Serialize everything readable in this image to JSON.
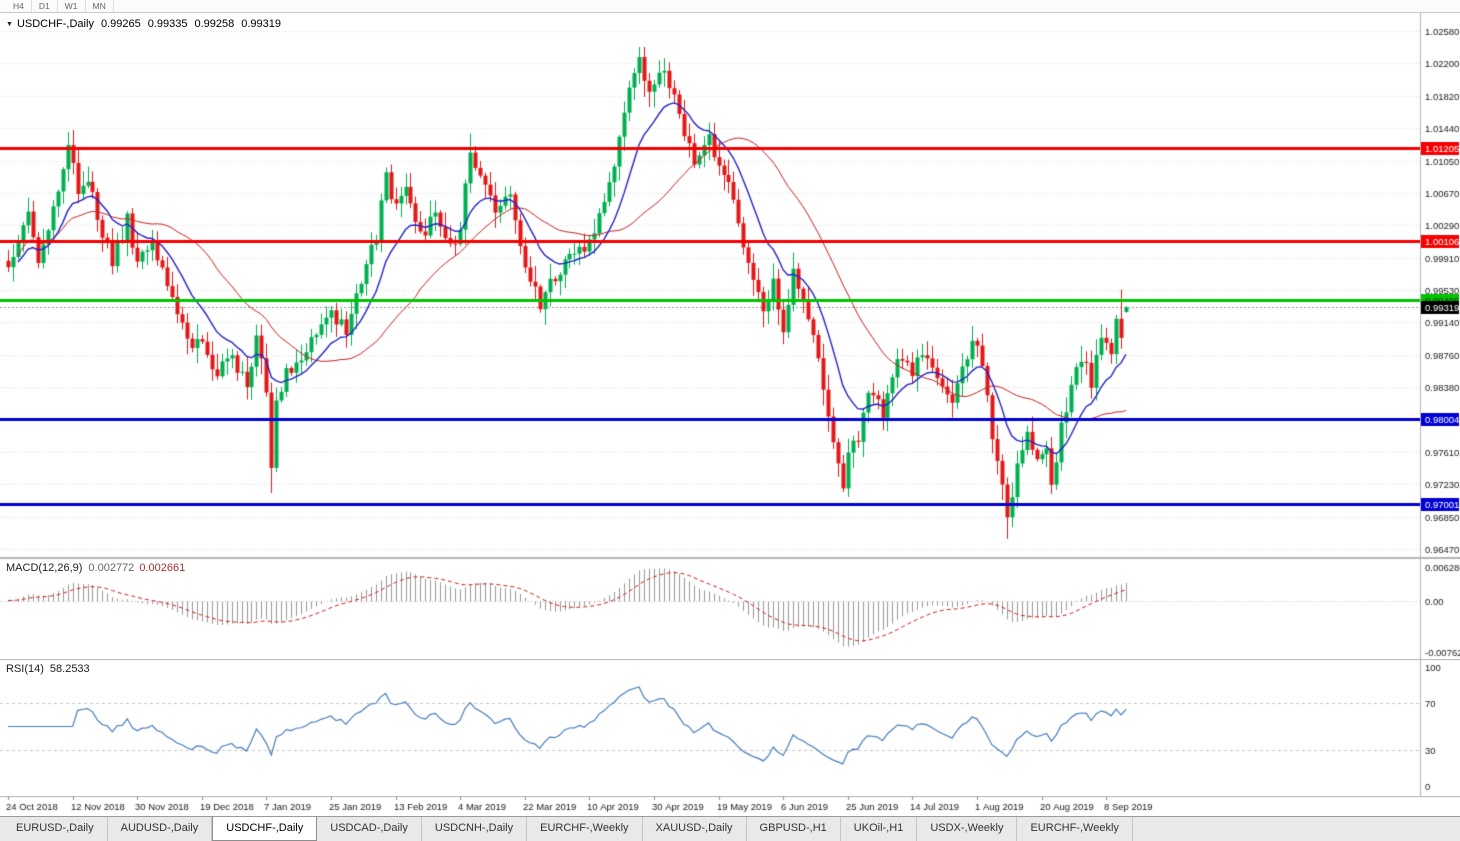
{
  "toolbar": {
    "timeframes": [
      "H4",
      "D1",
      "W1",
      "MN"
    ]
  },
  "icons": {
    "chart_dropdown": "▼"
  },
  "chart": {
    "title": "USDCHF-,Daily",
    "quote": {
      "open": "0.99265",
      "high": "0.99335",
      "low": "0.99258",
      "close": "0.99319"
    }
  },
  "chart_data": {
    "type": "candlestick",
    "symbol": "USDCHF",
    "timeframe": "Daily",
    "bars": 226,
    "price_axis": {
      "top": 1.0258,
      "bottom": 0.9647,
      "labels": [
        "1.02580",
        "1.02200",
        "1.01820",
        "1.01440",
        "1.01050",
        "1.00670",
        "1.00290",
        "0.99910",
        "0.99530",
        "0.99140",
        "0.98760",
        "0.98380",
        "0.97990",
        "0.97610",
        "0.97230",
        "0.96850",
        "0.96470"
      ]
    },
    "date_axis": {
      "labels": [
        "24 Oct 2018",
        "12 Nov 2018",
        "30 Nov 2018",
        "19 Dec 2018",
        "7 Jan 2019",
        "25 Jan 2019",
        "13 Feb 2019",
        "4 Mar 2019",
        "22 Mar 2019",
        "10 Apr 2019",
        "30 Apr 2019",
        "19 May 2019",
        "6 Jun 2019",
        "25 Jun 2019",
        "14 Jul 2019",
        "1 Aug 2019",
        "20 Aug 2019",
        "8 Sep 2019"
      ],
      "days": [
        0,
        13,
        26,
        39,
        52,
        65,
        78,
        91,
        104,
        117,
        130,
        143,
        156,
        169,
        182,
        195,
        208,
        221
      ]
    },
    "levels": [
      {
        "label": "1.01205",
        "price": 1.01205,
        "color": "#f40000",
        "text_color": "#ffffff",
        "width": 3
      },
      {
        "label": "1.00106",
        "price": 1.00106,
        "color": "#f40000",
        "text_color": "#ffffff",
        "width": 3
      },
      {
        "label": "0.99406",
        "price": 0.99406,
        "color": "#00c400",
        "text_color": "#00340a",
        "width": 3
      },
      {
        "label": "0.98004",
        "price": 0.98004,
        "color": "#0000d6",
        "text_color": "#ffffff",
        "width": 3
      },
      {
        "label": "0.97001",
        "price": 0.97001,
        "color": "#0000d6",
        "text_color": "#ffffff",
        "width": 3
      }
    ],
    "current_price": {
      "value": 0.99319,
      "label": "0.99319",
      "box_color": "#000000",
      "text_color": "#ffffff"
    },
    "last_candle": {
      "open": 0.99265,
      "high": 0.99335,
      "low": 0.99258,
      "close": 0.99319
    },
    "price_path_waypoints": [
      [
        0,
        0.9975
      ],
      [
        2,
        1.0015
      ],
      [
        4,
        1.0045
      ],
      [
        6,
        0.9985
      ],
      [
        9,
        1.0045
      ],
      [
        11,
        1.0095
      ],
      [
        12,
        1.0125
      ],
      [
        14,
        1.0065
      ],
      [
        16,
        1.0085
      ],
      [
        18,
        1.0035
      ],
      [
        21,
        0.9985
      ],
      [
        24,
        1.0035
      ],
      [
        26,
        0.9985
      ],
      [
        29,
        1.0005
      ],
      [
        33,
        0.9945
      ],
      [
        36,
        0.9895
      ],
      [
        39,
        0.9885
      ],
      [
        42,
        0.9855
      ],
      [
        45,
        0.9875
      ],
      [
        48,
        0.9835
      ],
      [
        50,
        0.9895
      ],
      [
        52,
        0.9835
      ],
      [
        53,
        0.9745
      ],
      [
        54,
        0.9815
      ],
      [
        56,
        0.9855
      ],
      [
        59,
        0.9865
      ],
      [
        62,
        0.9905
      ],
      [
        65,
        0.9925
      ],
      [
        68,
        0.9905
      ],
      [
        71,
        0.9965
      ],
      [
        74,
        1.0015
      ],
      [
        76,
        1.0085
      ],
      [
        78,
        1.005
      ],
      [
        80,
        1.007
      ],
      [
        83,
        1.0015
      ],
      [
        86,
        1.0045
      ],
      [
        89,
        1.0
      ],
      [
        91,
        1.003
      ],
      [
        93,
        1.0115
      ],
      [
        95,
        1.008
      ],
      [
        98,
        1.0045
      ],
      [
        101,
        1.0065
      ],
      [
        104,
        0.9985
      ],
      [
        107,
        0.9935
      ],
      [
        110,
        0.997
      ],
      [
        113,
        0.999
      ],
      [
        116,
        1.0005
      ],
      [
        119,
        1.0035
      ],
      [
        122,
        1.0105
      ],
      [
        125,
        1.0185
      ],
      [
        127,
        1.0225
      ],
      [
        129,
        1.0185
      ],
      [
        131,
        1.0215
      ],
      [
        133,
        1.0195
      ],
      [
        135,
        1.0155
      ],
      [
        138,
        1.0105
      ],
      [
        141,
        1.013
      ],
      [
        143,
        1.0095
      ],
      [
        146,
        1.006
      ],
      [
        149,
        0.9985
      ],
      [
        152,
        0.993
      ],
      [
        154,
        0.996
      ],
      [
        156,
        0.9905
      ],
      [
        158,
        0.998
      ],
      [
        161,
        0.9925
      ],
      [
        164,
        0.984
      ],
      [
        166,
        0.9765
      ],
      [
        168,
        0.972
      ],
      [
        169,
        0.9755
      ],
      [
        171,
        0.978
      ],
      [
        173,
        0.9835
      ],
      [
        176,
        0.981
      ],
      [
        179,
        0.9875
      ],
      [
        182,
        0.9855
      ],
      [
        184,
        0.988
      ],
      [
        187,
        0.9845
      ],
      [
        190,
        0.9815
      ],
      [
        192,
        0.9855
      ],
      [
        194,
        0.9895
      ],
      [
        196,
        0.987
      ],
      [
        198,
        0.977
      ],
      [
        200,
        0.9715
      ],
      [
        201,
        0.9685
      ],
      [
        203,
        0.9745
      ],
      [
        205,
        0.978
      ],
      [
        207,
        0.9755
      ],
      [
        209,
        0.977
      ],
      [
        210,
        0.9725
      ],
      [
        212,
        0.979
      ],
      [
        214,
        0.984
      ],
      [
        216,
        0.9875
      ],
      [
        218,
        0.9845
      ],
      [
        220,
        0.9895
      ],
      [
        222,
        0.9885
      ],
      [
        223,
        0.9915
      ],
      [
        224,
        0.9895
      ],
      [
        225,
        0.99319
      ]
    ],
    "spikes": [
      {
        "day": 12,
        "high": 1.0139
      },
      {
        "day": 53,
        "low": 0.9713
      },
      {
        "day": 93,
        "high": 1.0137
      },
      {
        "day": 127,
        "high": 1.0239
      },
      {
        "day": 201,
        "low": 0.9659
      },
      {
        "day": 224,
        "high": 0.9953
      }
    ],
    "moving_averages": [
      {
        "name": "fast",
        "type": "ema",
        "period": 12,
        "color": "#2323c8"
      },
      {
        "name": "slow",
        "type": "sma",
        "period": 30,
        "color": "#c92222"
      }
    ],
    "indicators": {
      "macd": {
        "label": "MACD(12,26,9)",
        "params": [
          12,
          26,
          9
        ],
        "values": [
          "0.002772",
          "0.002661"
        ],
        "axis_labels": [
          "0.006286",
          "0.00",
          "-0.00762"
        ]
      },
      "rsi": {
        "label": "RSI(14)",
        "period": 14,
        "value": "58.2533",
        "axis_labels": [
          "100",
          "70",
          "30",
          "0"
        ],
        "level_lines": [
          70,
          30
        ]
      }
    },
    "colors": {
      "bull": "#00b050",
      "bear": "#e31818",
      "macd_histogram": "#999999",
      "macd_signal": "#cc2020",
      "rsi_line": "#4a7ebb",
      "grid": "#dcdcdc",
      "axis_text": "#1a1a1a",
      "current_price_line": "#9a9a9a"
    }
  },
  "tabbar": {
    "active_index": 2,
    "tabs": [
      "EURUSD-,Daily",
      "AUDUSD-,Daily",
      "USDCHF-,Daily",
      "USDCAD-,Daily",
      "USDCNH-,Daily",
      "EURCHF-,Weekly",
      "XAUUSD-,Daily",
      "GBPUSD-,H1",
      "UKOil-,H1",
      "USDX-,Weekly",
      "EURCHF-,Weekly"
    ]
  }
}
